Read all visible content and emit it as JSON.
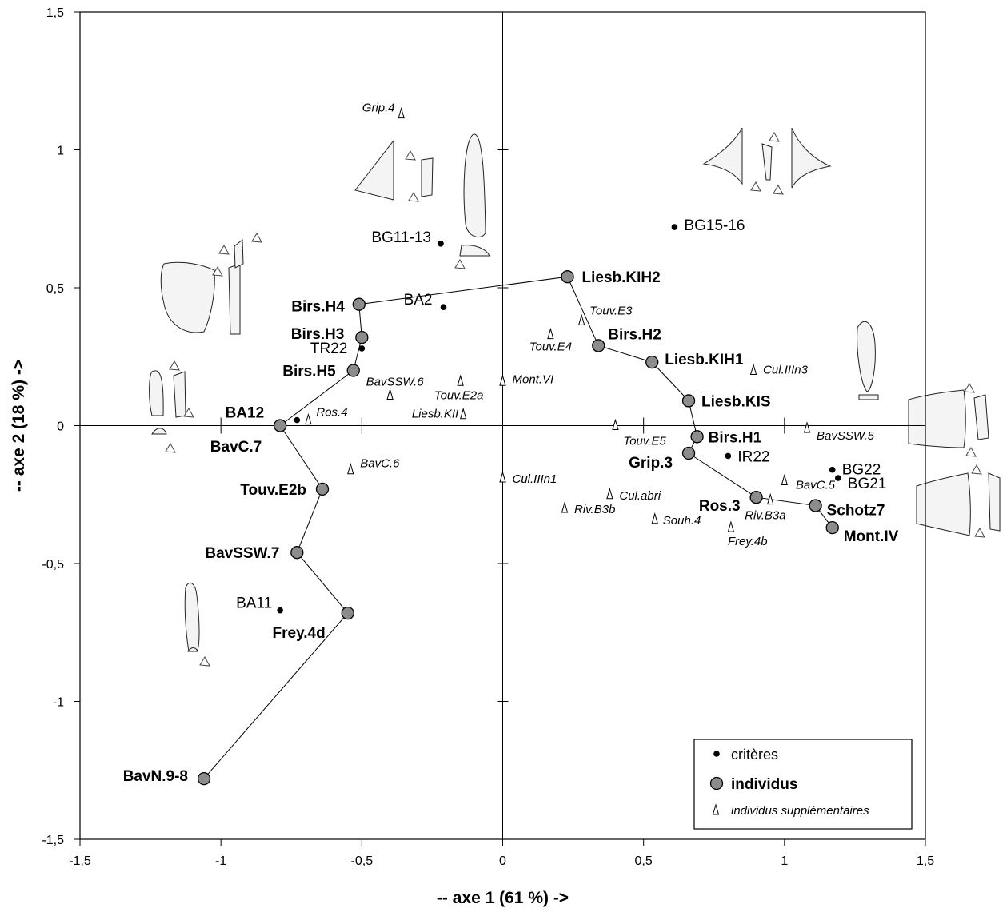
{
  "chart_data": {
    "type": "scatter",
    "xlabel": "-- axe 1 (61 %) ->",
    "ylabel": "-- axe 2 (18 %) ->",
    "xlim": [
      -1.5,
      1.5
    ],
    "ylim": [
      -1.5,
      1.5
    ],
    "x_tick_labels": [
      "-1,5",
      "-1",
      "-0,5",
      "0",
      "0,5",
      "1",
      "1,5"
    ],
    "y_tick_labels": [
      "-1,5",
      "-1",
      "-0,5",
      "0",
      "0,5",
      "1",
      "1,5"
    ],
    "legend": {
      "position": "bottom-right",
      "entries": [
        {
          "key": "criteres",
          "label": "critères"
        },
        {
          "key": "individus",
          "label": "individus"
        },
        {
          "key": "supp",
          "label": "individus supplémentaires"
        }
      ]
    },
    "series": [
      {
        "name": "individus",
        "connected": true,
        "points": [
          {
            "label": "BavN.9-8",
            "x": -1.06,
            "y": -1.28
          },
          {
            "label": "Frey.4d",
            "x": -0.55,
            "y": -0.68
          },
          {
            "label": "BavSSW.7",
            "x": -0.73,
            "y": -0.46
          },
          {
            "label": "Touv.E2b",
            "x": -0.64,
            "y": -0.23
          },
          {
            "label": "BA12",
            "x": -0.79,
            "y": 0.0
          },
          {
            "label": "Birs.H5",
            "x": -0.53,
            "y": 0.2
          },
          {
            "label": "Birs.H3",
            "x": -0.5,
            "y": 0.32
          },
          {
            "label": "Birs.H4",
            "x": -0.51,
            "y": 0.44
          },
          {
            "label": "Liesb.KIH2",
            "x": 0.23,
            "y": 0.54
          },
          {
            "label": "Birs.H2",
            "x": 0.34,
            "y": 0.29
          },
          {
            "label": "Liesb.KIH1",
            "x": 0.53,
            "y": 0.23
          },
          {
            "label": "Liesb.KIS",
            "x": 0.66,
            "y": 0.09
          },
          {
            "label": "Birs.H1",
            "x": 0.69,
            "y": -0.04
          },
          {
            "label": "Grip.3",
            "x": 0.66,
            "y": -0.1
          },
          {
            "label": "Ros.3",
            "x": 0.9,
            "y": -0.26
          },
          {
            "label": "Schotz7",
            "x": 1.11,
            "y": -0.29
          },
          {
            "label": "Mont.IV",
            "x": 1.17,
            "y": -0.37
          }
        ]
      },
      {
        "name": "critères",
        "connected": false,
        "points": [
          {
            "label": "BG11-13",
            "x": -0.22,
            "y": 0.66
          },
          {
            "label": "BA2",
            "x": -0.21,
            "y": 0.43
          },
          {
            "label": "TR22",
            "x": -0.5,
            "y": 0.28
          },
          {
            "label": "BA11",
            "x": -0.79,
            "y": -0.67
          },
          {
            "label": "BG15-16",
            "x": 0.61,
            "y": 0.72
          },
          {
            "label": "IR22",
            "x": 0.8,
            "y": -0.11
          },
          {
            "label": "BG22",
            "x": 1.17,
            "y": -0.16
          },
          {
            "label": "BG21",
            "x": 1.19,
            "y": -0.19
          },
          {
            "label": "",
            "x": -0.73,
            "y": 0.02
          }
        ]
      },
      {
        "name": "individus supplémentaires",
        "connected": false,
        "points": [
          {
            "label": "Grip.4",
            "x": -0.36,
            "y": 1.13
          },
          {
            "label": "Touv.E3",
            "x": 0.28,
            "y": 0.38
          },
          {
            "label": "Touv.E4",
            "x": 0.17,
            "y": 0.33
          },
          {
            "label": "BavSSW.6",
            "x": -0.4,
            "y": 0.11
          },
          {
            "label": "Touv.E2a",
            "x": -0.15,
            "y": 0.16
          },
          {
            "label": "Mont.VI",
            "x": 0.0,
            "y": 0.16
          },
          {
            "label": "Ros.4",
            "x": -0.69,
            "y": 0.02
          },
          {
            "label": "Liesb.KII",
            "x": -0.14,
            "y": 0.04
          },
          {
            "label": "Cul.IIIn3",
            "x": 0.89,
            "y": 0.2
          },
          {
            "label": "Touv.E5",
            "x": 0.4,
            "y": 0.0
          },
          {
            "label": "BavSSW.5",
            "x": 1.08,
            "y": -0.01
          },
          {
            "label": "BavC.6",
            "x": -0.54,
            "y": -0.16
          },
          {
            "label": "Cul.IIIn1",
            "x": 0.0,
            "y": -0.19
          },
          {
            "label": "Cul.abri",
            "x": 0.38,
            "y": -0.25
          },
          {
            "label": "Riv.B3b",
            "x": 0.22,
            "y": -0.3
          },
          {
            "label": "Souh.4",
            "x": 0.54,
            "y": -0.34
          },
          {
            "label": "BavC.5",
            "x": 1.0,
            "y": -0.2
          },
          {
            "label": "Riv.B3a",
            "x": 0.95,
            "y": -0.27
          },
          {
            "label": "Frey.4b",
            "x": 0.81,
            "y": -0.37
          }
        ]
      }
    ],
    "extra_labels": [
      {
        "label": "BavC.7"
      }
    ]
  }
}
